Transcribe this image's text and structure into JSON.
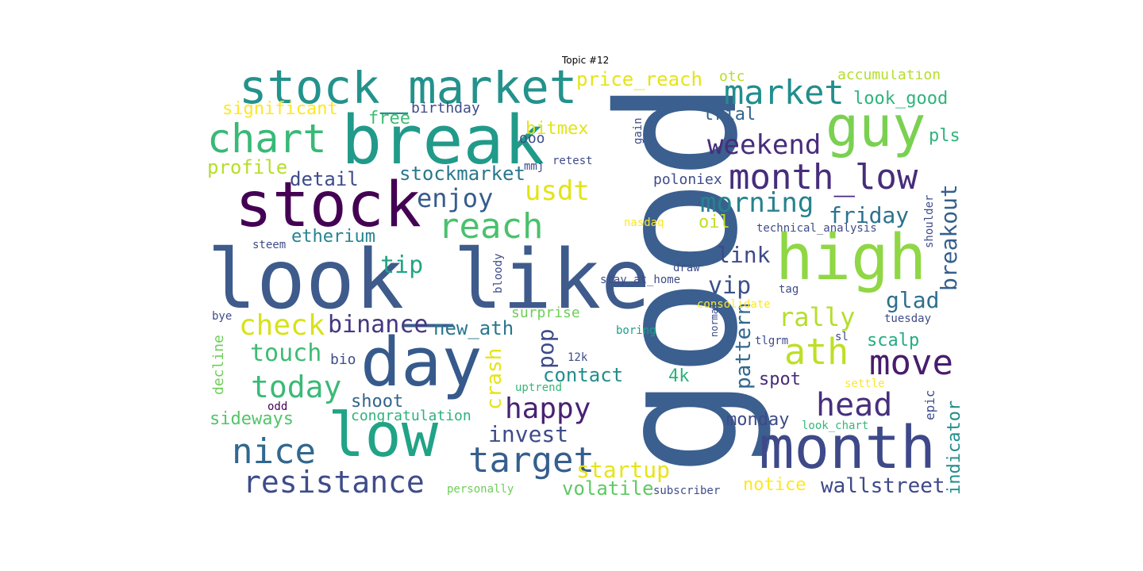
{
  "title": "Topic #12",
  "colors": {
    "dark_purple": "#440154",
    "indigo": "#482878",
    "blue_purple": "#3e4989",
    "blue": "#31688e",
    "teal": "#26828e",
    "teal_green": "#1f9e89",
    "green": "#35b779",
    "light_green": "#6ece58",
    "lime": "#b5de2b",
    "yellow": "#fde725"
  },
  "words": {
    "good": "good",
    "look_like": "look_like",
    "stock": "stock",
    "break": "break",
    "stock_market": "stock_market",
    "month": "month",
    "high": "high",
    "day": "day",
    "low": "low",
    "guy": "guy",
    "month_low": "month_low",
    "market": "market",
    "chart": "chart",
    "ath": "ath",
    "move": "move",
    "target": "target",
    "nice": "nice",
    "resistance": "resistance",
    "reach": "reach",
    "today": "today",
    "head": "head",
    "check": "check",
    "binance": "binance",
    "happy": "happy",
    "weekend": "weekend",
    "morning": "morning",
    "enjoy": "enjoy",
    "usdt": "usdt",
    "breakout": "breakout",
    "invest": "invest",
    "rally": "rally",
    "touch": "touch",
    "pattern": "pattern",
    "startup": "startup",
    "vip": "vip",
    "friday": "friday",
    "crash": "crash",
    "pop": "pop",
    "tip": "tip",
    "link": "link",
    "glad": "glad",
    "wallstreet": "wallstreet",
    "indicator": "indicator",
    "price_reach": "price_reach",
    "stockmarket": "stockmarket",
    "new_ath": "new_ath",
    "contact": "contact",
    "volatile": "volatile",
    "profile": "profile",
    "etherium": "etherium",
    "detail": "detail",
    "significant": "significant",
    "free": "free",
    "bitmex": "bitmex",
    "shoot": "shoot",
    "sideways": "sideways",
    "monday": "monday",
    "spot": "spot",
    "notice": "notice",
    "oil": "oil",
    "trial": "trial",
    "look_good": "look_good",
    "pls": "pls",
    "scalp": "scalp",
    "4k": "4k",
    "birthday": "birthday",
    "congratulation": "congratulation",
    "accumulation": "accumulation",
    "otc": "otc",
    "poloniex": "poloniex",
    "surprise": "surprise",
    "ooo": "ooo",
    "bio": "bio",
    "decline": "decline",
    "epic": "epic",
    "technical_analysis": "technical_analysis",
    "stay_at_home": "stay_at_home",
    "shoulder": "shoulder",
    "tuesday": "tuesday",
    "tlgrm": "tlgrm",
    "steem": "steem",
    "bye": "bye",
    "odd": "odd",
    "retest": "retest",
    "mmj": "mmj",
    "gain": "gain",
    "nasdaq": "nasdaq",
    "bloody": "bloody",
    "draw": "draw",
    "consolidate": "consolidate",
    "boring": "boring",
    "normal": "normal",
    "tag": "tag",
    "sl": "sl",
    "12k": "12k",
    "uptrend": "uptrend",
    "settle": "settle",
    "look_chart": "look_chart",
    "personally": "personally",
    "subscriber": "subscriber"
  }
}
